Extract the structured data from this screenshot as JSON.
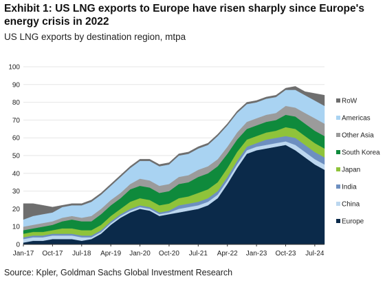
{
  "header": {
    "title": "Exhibit 1: US LNG exports to Europe have risen sharply since Europe's energy crisis in 2022",
    "subtitle": "US LNG exports by destination region, mtpa"
  },
  "footer": {
    "source": "Source: Kpler, Goldman Sachs Global Investment Research"
  },
  "chart_data": {
    "type": "area",
    "stacked": true,
    "ylim": [
      0,
      100
    ],
    "yticks": [
      0,
      10,
      20,
      30,
      40,
      50,
      60,
      70,
      80,
      90,
      100
    ],
    "x": [
      "Jan-17",
      "Apr-17",
      "Jul-17",
      "Oct-17",
      "Jan-18",
      "Apr-18",
      "Jul-18",
      "Oct-18",
      "Jan-19",
      "Apr-19",
      "Jul-19",
      "Oct-19",
      "Jan-20",
      "Apr-20",
      "Jul-20",
      "Oct-20",
      "Jan-21",
      "Apr-21",
      "Jul-21",
      "Oct-21",
      "Jan-22",
      "Apr-22",
      "Jul-22",
      "Oct-22",
      "Jan-23",
      "Apr-23",
      "Jul-23",
      "Oct-23",
      "Jan-24",
      "Apr-24",
      "Jul-24",
      "Oct-24"
    ],
    "xtick_labels": [
      "Jan-17",
      "Oct-17",
      "Jul-18",
      "Apr-19",
      "Jan-20",
      "Oct-20",
      "Jul-21",
      "Apr-22",
      "Jan-23",
      "Oct-23",
      "Jul-24"
    ],
    "legend_position": "right",
    "series": [
      {
        "name": "Europe",
        "color": "#0b2a4a",
        "values": [
          1,
          2,
          2,
          3,
          3,
          3,
          2,
          3,
          6,
          11,
          15,
          18,
          20,
          19,
          16,
          17,
          18,
          19,
          20,
          22,
          26,
          34,
          43,
          51,
          53,
          54,
          55,
          56,
          53,
          49,
          45,
          42
        ]
      },
      {
        "name": "China",
        "color": "#bcd7ef",
        "values": [
          2,
          2,
          2,
          2,
          2,
          2,
          2,
          1,
          1,
          1,
          1,
          1,
          1,
          1,
          1,
          1,
          2,
          2,
          2,
          2,
          2,
          2,
          2,
          2,
          2,
          2,
          2,
          2,
          3,
          3,
          3,
          3
        ]
      },
      {
        "name": "India",
        "color": "#6d8fc0",
        "values": [
          1,
          1,
          1,
          1,
          1,
          1,
          1,
          1,
          1,
          1,
          1,
          1,
          1,
          1,
          1,
          1,
          2,
          2,
          2,
          2,
          2,
          2,
          2,
          2,
          2,
          3,
          3,
          3,
          4,
          4,
          4,
          4
        ]
      },
      {
        "name": "Japan",
        "color": "#8fc33a",
        "values": [
          2,
          2,
          2,
          2,
          3,
          3,
          3,
          3,
          3,
          3,
          3,
          4,
          4,
          4,
          4,
          4,
          4,
          4,
          5,
          5,
          5,
          5,
          5,
          4,
          4,
          4,
          4,
          5,
          5,
          5,
          5,
          5
        ]
      },
      {
        "name": "South Korea",
        "color": "#0f8a3c",
        "values": [
          2,
          2,
          3,
          3,
          4,
          5,
          5,
          5,
          6,
          6,
          6,
          7,
          7,
          7,
          7,
          7,
          8,
          8,
          9,
          9,
          9,
          8,
          7,
          6,
          6,
          6,
          6,
          7,
          7,
          7,
          7,
          7
        ]
      },
      {
        "name": "Other Asia",
        "color": "#9b9b9b",
        "values": [
          2,
          2,
          2,
          2,
          2,
          2,
          2,
          3,
          3,
          3,
          3,
          3,
          4,
          4,
          4,
          4,
          4,
          4,
          4,
          4,
          4,
          4,
          4,
          4,
          4,
          4,
          4,
          5,
          5,
          6,
          7,
          7
        ]
      },
      {
        "name": "Americas",
        "color": "#a9d3f2",
        "values": [
          4,
          5,
          5,
          5,
          6,
          6,
          7,
          8,
          8,
          8,
          9,
          9,
          10,
          11,
          11,
          11,
          12,
          12,
          12,
          12,
          13,
          12,
          11,
          10,
          9,
          9,
          9,
          9,
          10,
          10,
          10,
          10
        ]
      },
      {
        "name": "RoW",
        "color": "#6e6e6e",
        "values": [
          9,
          7,
          5,
          3,
          1,
          1,
          1,
          1,
          1,
          1,
          1,
          1,
          1,
          1,
          1,
          1,
          1,
          1,
          1,
          1,
          1,
          1,
          1,
          1,
          1,
          1,
          1,
          1,
          2,
          2,
          4,
          6
        ]
      }
    ]
  }
}
